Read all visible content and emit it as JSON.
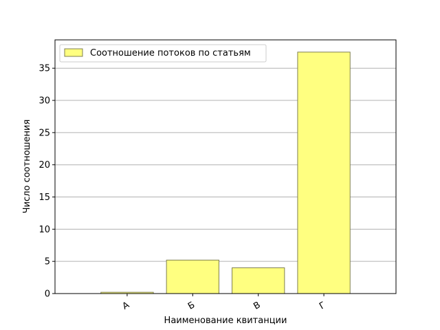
{
  "chart_data": {
    "type": "bar",
    "categories": [
      "А",
      "Б",
      "В",
      "Г"
    ],
    "values": [
      0.2,
      5.2,
      4.0,
      37.5
    ],
    "series": [
      {
        "name": "Соотношение потоков по статьям",
        "values": [
          0.2,
          5.2,
          4.0,
          37.5
        ]
      }
    ],
    "xlabel": "Наименование квитанции",
    "ylabel": "Число соотношения",
    "ylim": [
      0,
      39.4
    ],
    "yticks": [
      0,
      5,
      10,
      15,
      20,
      25,
      30,
      35
    ],
    "grid": "horizontal",
    "legend_position": "top-left",
    "x_tick_rotation": -30,
    "colors": {
      "bar_fill": "#ffff80",
      "bar_stroke": "#7f7f50",
      "grid": "#b0b0b0",
      "axis": "#000000"
    }
  }
}
